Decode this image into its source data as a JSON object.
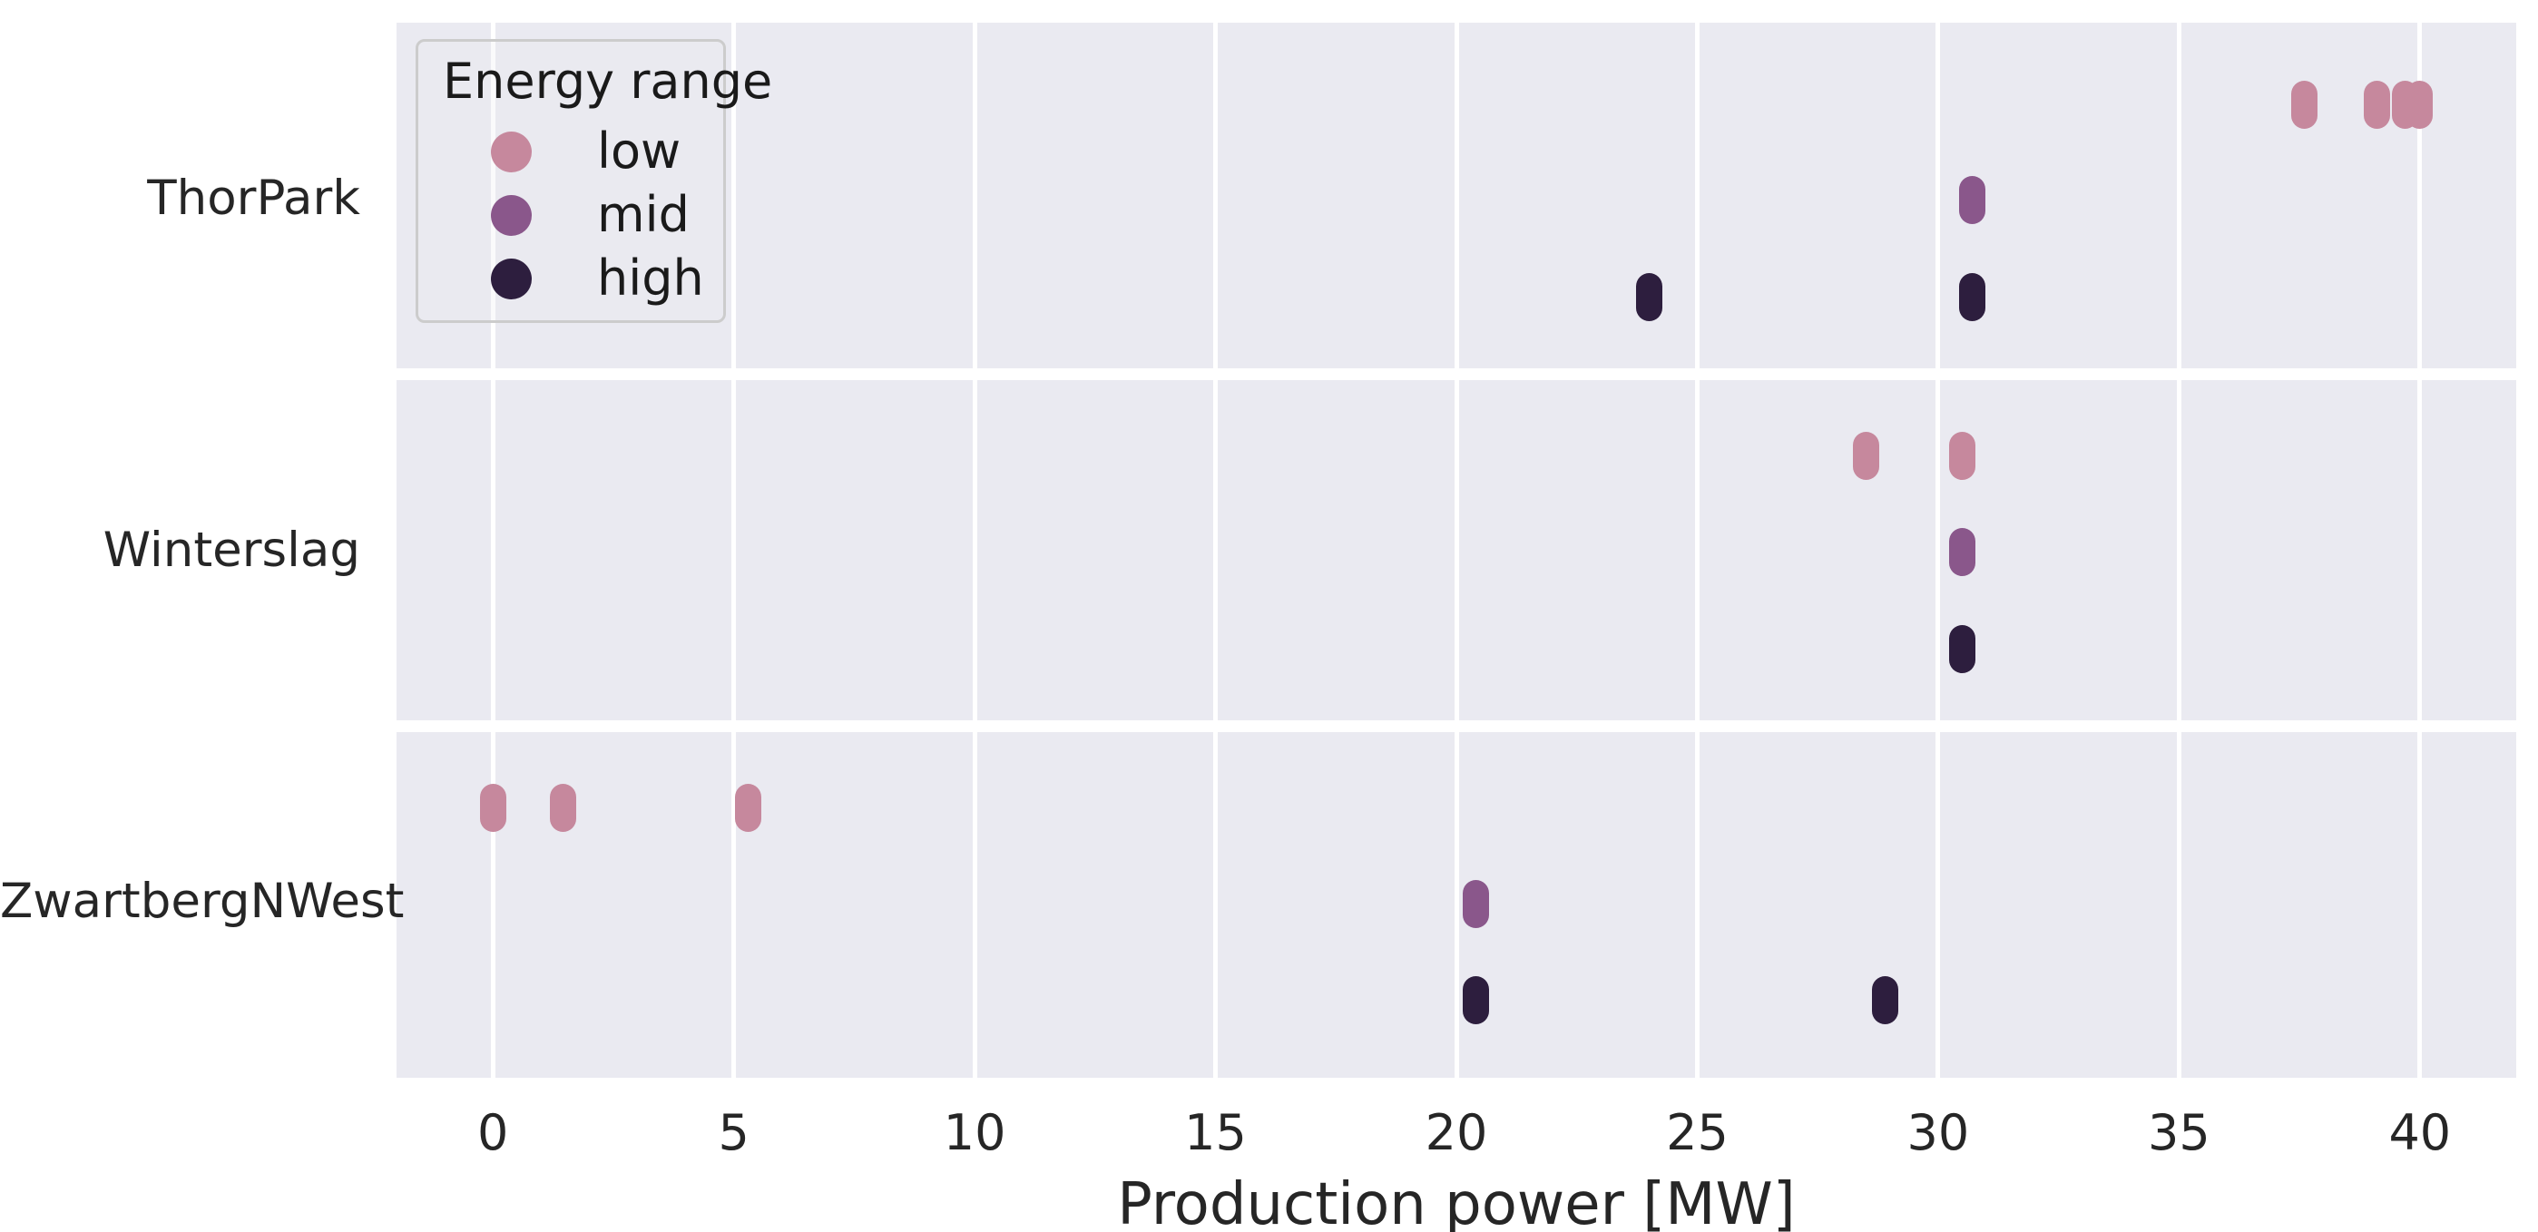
{
  "chart_data": {
    "type": "scatter",
    "variant": "categorical-strip-dodged",
    "title": "",
    "xlabel": "Production power [MW]",
    "ylabel": "",
    "categories": [
      "ThorPark",
      "Winterslag",
      "ZwartbergNWest"
    ],
    "legend": {
      "title": "Energy range",
      "entries": [
        "low",
        "mid",
        "high"
      ],
      "position": "upper left"
    },
    "series": [
      {
        "name": "low",
        "color": "#c6889d",
        "points": {
          "ThorPark": [
            37.6,
            39.1,
            39.7,
            40.0
          ],
          "Winterslag": [
            28.5,
            30.5
          ],
          "ZwartbergNWest": [
            0.0,
            1.45,
            5.3
          ]
        }
      },
      {
        "name": "mid",
        "color": "#8a578b",
        "points": {
          "ThorPark": [
            30.7
          ],
          "Winterslag": [
            30.5
          ],
          "ZwartbergNWest": [
            20.4
          ]
        }
      },
      {
        "name": "high",
        "color": "#2d1e3e",
        "points": {
          "ThorPark": [
            24.0,
            30.7
          ],
          "Winterslag": [
            30.5
          ],
          "ZwartbergNWest": [
            20.4,
            28.9
          ]
        }
      }
    ],
    "xlim": [
      -2,
      42
    ],
    "xticks": [
      0,
      5,
      10,
      15,
      20,
      25,
      30,
      35,
      40
    ],
    "xtick_labels": [
      "0",
      "5",
      "10",
      "15",
      "20",
      "25",
      "30",
      "35",
      "40"
    ],
    "grid": true,
    "hue_row_offsets": [
      0.233,
      0.505,
      0.78
    ],
    "styles": {
      "figure_bg": "#ffffff",
      "plot_bg": "#eaeaf1",
      "grid_color": "#ffffff",
      "text_color": "#262626",
      "legend_border_color": "#cccccc"
    }
  }
}
